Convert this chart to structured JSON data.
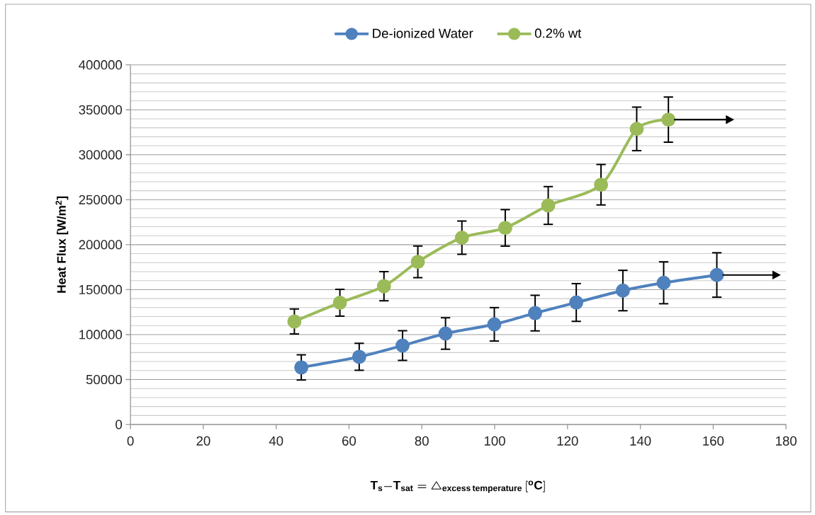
{
  "chart_data": {
    "type": "line",
    "xlabel": "\\mathrm{T}_{\\mathrm{s}}{-}\\mathrm{T}_{\\mathrm{sat}} = \\triangle_{\\mathrm{excess}\\,\\mathrm{temperature}}\\,[^{\\mathrm{o}}\\mathrm{C}]",
    "ylabel": "Heat Flux [W/m$^{2}$]",
    "xlim": [
      0,
      180
    ],
    "xticks": [
      0,
      20,
      40,
      60,
      80,
      100,
      120,
      140,
      160,
      180
    ],
    "ylim": [
      0,
      400000
    ],
    "yticks": [
      0,
      50000,
      100000,
      150000,
      200000,
      250000,
      300000,
      350000,
      400000
    ],
    "grid": "y",
    "legend": "top",
    "marker": "circle",
    "line_style": "solid",
    "series": [
      {
        "name": "De-ionized Water",
        "color": "#4f81bd",
        "x": [
          46.9,
          62.8,
          74.7,
          86.5,
          99.9,
          111.1,
          122.4,
          135.2,
          146.4,
          161.0
        ],
        "values": [
          63500,
          75300,
          87800,
          101200,
          111400,
          123900,
          135700,
          149000,
          157600,
          166300
        ],
        "errors": [
          14000,
          15000,
          16500,
          17500,
          18600,
          19800,
          21000,
          22500,
          23300,
          24700
        ]
      },
      {
        "name": "0.2% wt",
        "color": "#9bbb59",
        "x": [
          45.0,
          57.5,
          69.6,
          78.9,
          91.0,
          102.9,
          114.7,
          129.2,
          139.0,
          147.7
        ],
        "values": [
          114600,
          135400,
          153800,
          180900,
          207800,
          218700,
          243600,
          266700,
          328800,
          339100
        ],
        "errors": [
          13900,
          14900,
          16200,
          17600,
          18500,
          20300,
          21000,
          22500,
          24200,
          25100
        ]
      }
    ]
  }
}
